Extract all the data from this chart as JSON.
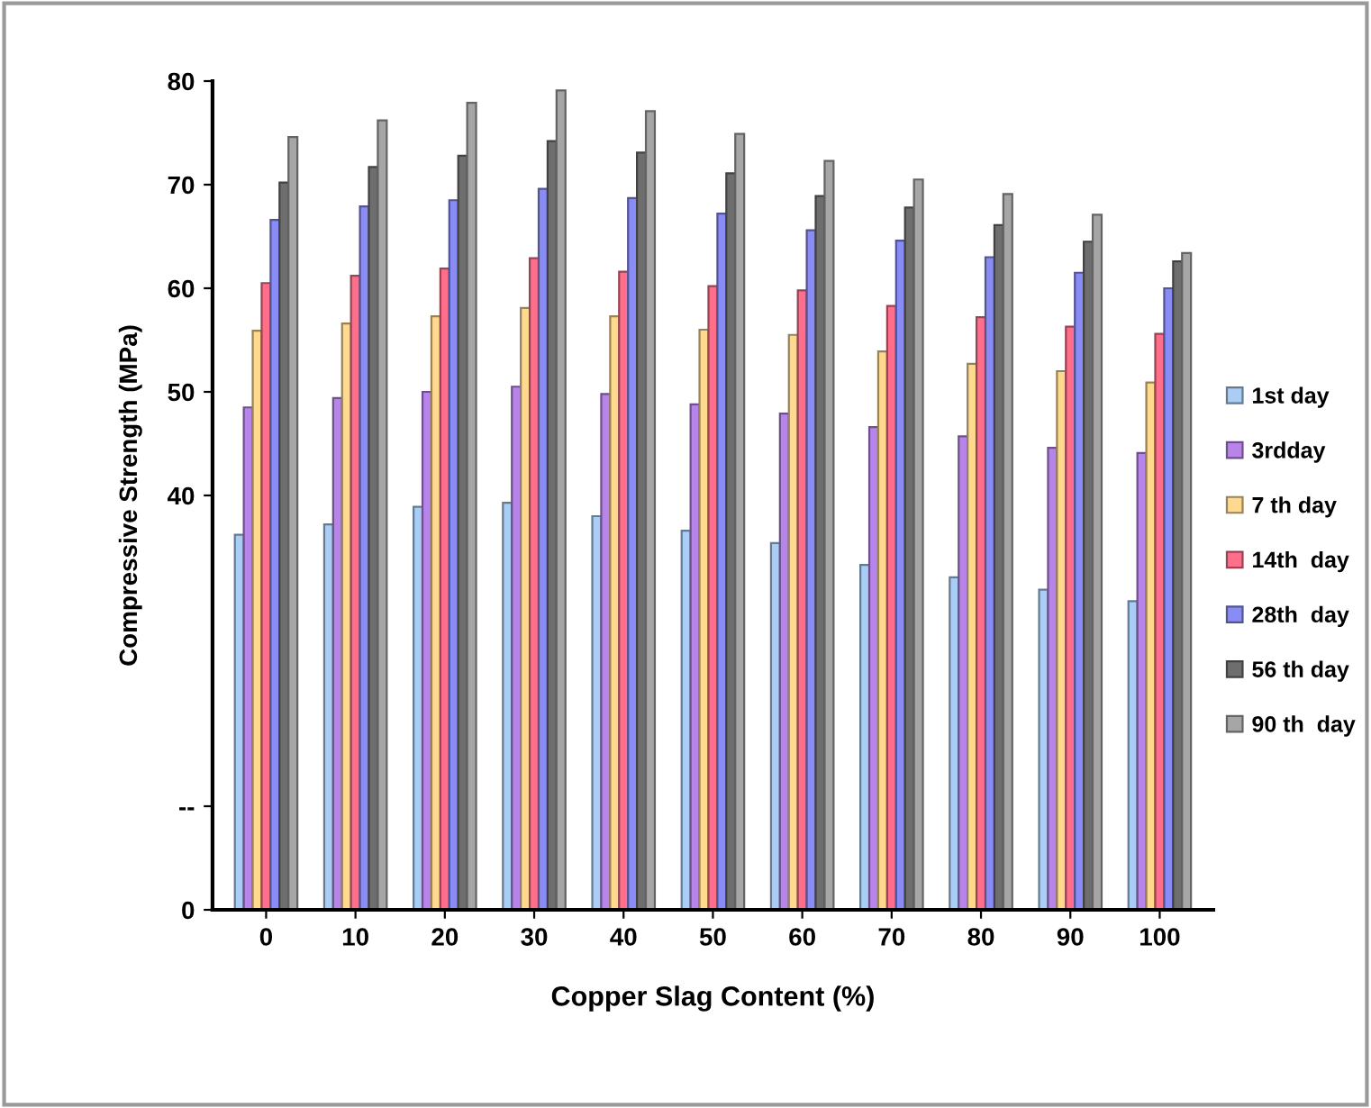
{
  "chart_data": {
    "type": "bar",
    "xlabel": "Copper Slag Content (%)",
    "ylabel": "Compressive Strength (MPa)",
    "categories": [
      "0",
      "10",
      "20",
      "30",
      "40",
      "50",
      "60",
      "70",
      "80",
      "90",
      "100"
    ],
    "series": [
      {
        "name": "1st day",
        "color": "#a9cdf5",
        "values": [
          36.2,
          37.2,
          38.9,
          39.3,
          38.0,
          36.6,
          35.4,
          33.3,
          32.1,
          30.9,
          29.8
        ]
      },
      {
        "name": "3rdday",
        "color": "#b785ea",
        "values": [
          48.5,
          49.4,
          50.0,
          50.5,
          49.8,
          48.8,
          47.9,
          46.6,
          45.7,
          44.6,
          44.1
        ]
      },
      {
        "name": "7 th day",
        "color": "#ffd98e",
        "values": [
          55.9,
          56.6,
          57.3,
          58.1,
          57.3,
          56.0,
          55.5,
          53.9,
          52.7,
          52.0,
          50.9
        ]
      },
      {
        "name": "14th  day",
        "color": "#ff6f8c",
        "values": [
          60.5,
          61.2,
          61.9,
          62.9,
          61.6,
          60.2,
          59.8,
          58.3,
          57.2,
          56.3,
          55.6
        ]
      },
      {
        "name": "28th  day",
        "color": "#8a8cf5",
        "values": [
          66.6,
          67.9,
          68.5,
          69.6,
          68.7,
          67.2,
          65.6,
          64.6,
          63.0,
          61.5,
          60.0
        ]
      },
      {
        "name": "56 th day",
        "color": "#6e6e6e",
        "values": [
          70.2,
          71.7,
          72.8,
          74.2,
          73.1,
          71.1,
          68.9,
          67.8,
          66.1,
          64.5,
          62.6
        ]
      },
      {
        "name": "90 th  day",
        "color": "#a6a6a6",
        "values": [
          74.6,
          76.2,
          77.9,
          79.1,
          77.1,
          74.9,
          72.3,
          70.5,
          69.1,
          67.1,
          63.4
        ]
      }
    ],
    "ylim": [
      0,
      80
    ],
    "yticks": [
      0,
      {
        "value": 10,
        "label": "--"
      },
      40,
      50,
      60,
      70,
      80
    ],
    "grid": false,
    "legend": "right"
  }
}
